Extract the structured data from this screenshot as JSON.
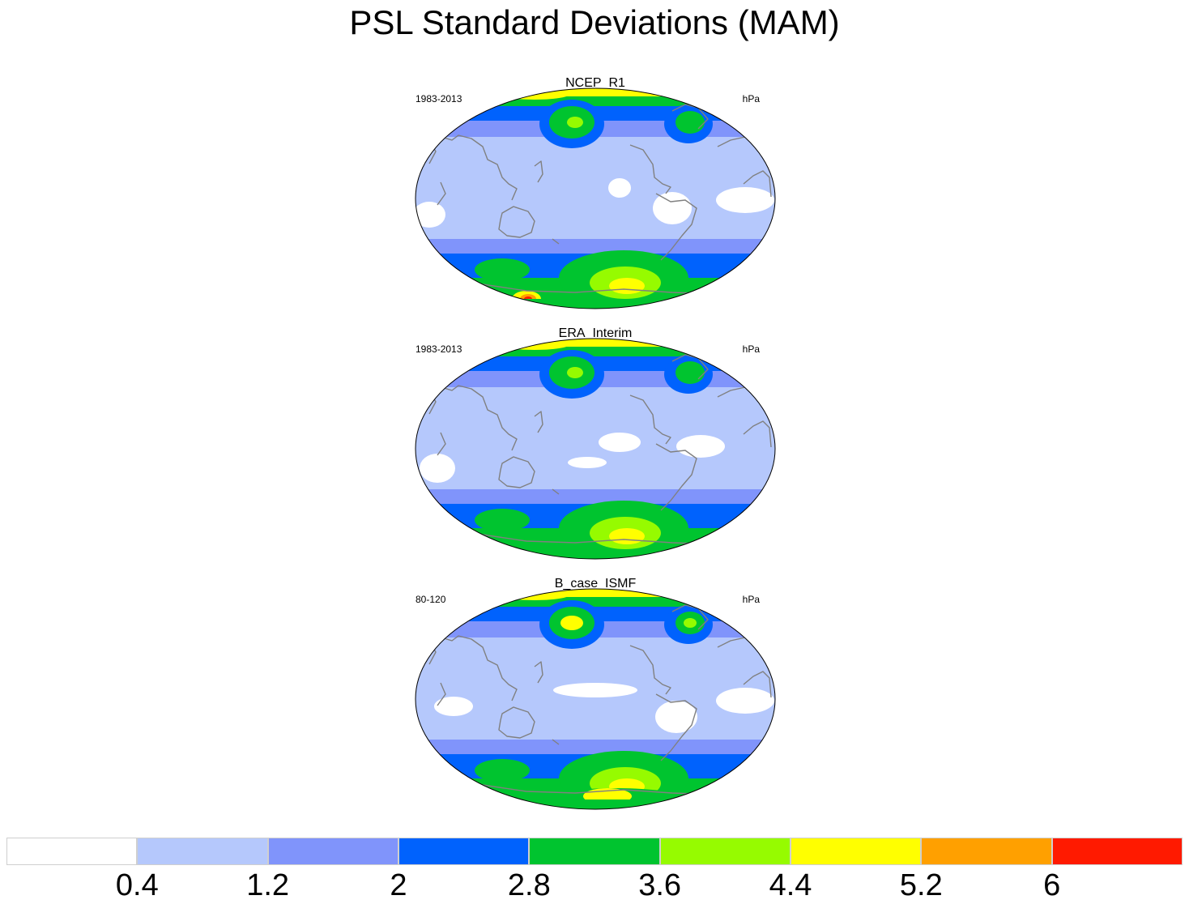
{
  "title": "PSL Standard Deviations (MAM)",
  "panels": [
    {
      "name": "NCEP_R1",
      "period": "1983-2013",
      "units": "hPa"
    },
    {
      "name": "ERA_Interim",
      "period": "1983-2013",
      "units": "hPa"
    },
    {
      "name": "B_case_ISMF",
      "period": "80-120",
      "units": "hPa"
    }
  ],
  "colorbar": {
    "labels": [
      "0.4",
      "1.2",
      "2",
      "2.8",
      "3.6",
      "4.4",
      "5.2",
      "6"
    ],
    "colors": [
      "#ffffff",
      "#b5c8fc",
      "#8094fb",
      "#0062fd",
      "#00c42f",
      "#96fb00",
      "#ffff00",
      "#ffa000",
      "#ff1a00"
    ]
  },
  "colors": {
    "coastline": "#808080",
    "map_outline": "#000000"
  }
}
